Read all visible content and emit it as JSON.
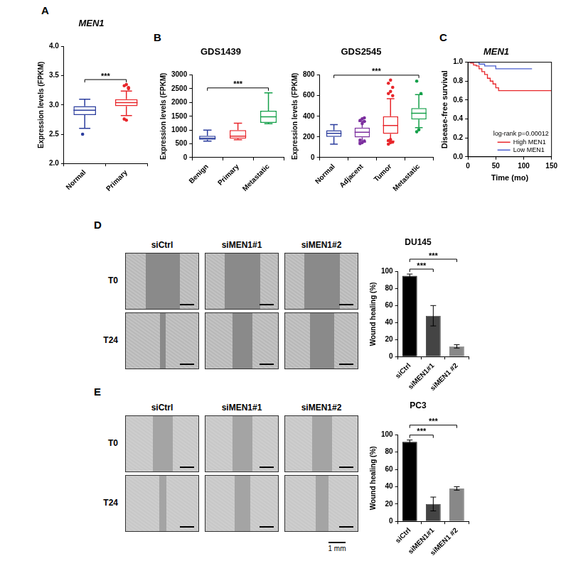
{
  "panel_labels": [
    "A",
    "B",
    "C",
    "D",
    "E"
  ],
  "chart_data": [
    {
      "type": "box",
      "title": "MEN1",
      "y_label": "Expression levels (FPKM)",
      "categories": [
        "Normal",
        "Primary"
      ],
      "colors": [
        "#2c3e9e",
        "#e8262b"
      ],
      "boxes": [
        {
          "min": 2.6,
          "q1": 2.83,
          "median": 2.91,
          "q3": 2.98,
          "max": 3.1,
          "outliers": [
            2.5
          ]
        },
        {
          "min": 2.82,
          "q1": 2.98,
          "median": 3.04,
          "q3": 3.1,
          "max": 3.24,
          "outliers": [
            2.76,
            2.74,
            3.28,
            3.33,
            3.35,
            3.3
          ]
        }
      ],
      "ylim": [
        2,
        4
      ],
      "yticks": [
        {
          "value": 2,
          "label": "2.0"
        },
        2.5,
        {
          "value": 3,
          "label": "3.0"
        },
        3.5,
        {
          "value": 4,
          "label": "4.0"
        }
      ],
      "significance": [
        {
          "from": "Normal",
          "to": "Primary",
          "label": "***"
        }
      ]
    },
    {
      "type": "box",
      "title": "GDS1439",
      "y_label": "Expression levels (FPKM)",
      "categories": [
        "Benign",
        "Primary",
        "Metastatic"
      ],
      "colors": [
        "#2c3e9e",
        "#e8262b",
        "#15a04a"
      ],
      "boxes": [
        {
          "min": 600,
          "q1": 650,
          "median": 700,
          "q3": 790,
          "max": 1000,
          "outliers": []
        },
        {
          "min": 650,
          "q1": 690,
          "median": 780,
          "q3": 1000,
          "max": 1250,
          "outliers": []
        },
        {
          "min": 1230,
          "q1": 1260,
          "median": 1480,
          "q3": 1700,
          "max": 2350,
          "outliers": []
        }
      ],
      "ylim": [
        0,
        3000
      ],
      "yticks": [
        0,
        500,
        1000,
        1500,
        2000,
        2500,
        3000
      ],
      "significance": [
        {
          "from": "Benign",
          "to": "Metastatic",
          "label": "***"
        }
      ]
    },
    {
      "type": "box",
      "title": "GDS2545",
      "y_label": "Expression levels (FPKM)",
      "categories": [
        "Normal",
        "Adjacent",
        "Tumor",
        "Metastatic"
      ],
      "colors": [
        "#2c3e9e",
        "#7b2d9e",
        "#e8262b",
        "#15a04a"
      ],
      "boxes": [
        {
          "min": 130,
          "q1": 200,
          "median": 235,
          "q3": 265,
          "max": 320,
          "outliers": []
        },
        {
          "min": 150,
          "q1": 195,
          "median": 245,
          "q3": 290,
          "max": 350,
          "outliers": [
            135,
            145,
            160,
            170,
            330,
            350,
            360,
            375,
            385
          ]
        },
        {
          "min": 160,
          "q1": 230,
          "median": 310,
          "q3": 400,
          "max": 570,
          "outliers": [
            130,
            145,
            150,
            165,
            175,
            600,
            620,
            640,
            680,
            720,
            750
          ]
        },
        {
          "min": 290,
          "q1": 370,
          "median": 430,
          "q3": 480,
          "max": 610,
          "outliers": [
            250,
            270,
            620,
            740
          ]
        }
      ],
      "ylim": [
        0,
        800
      ],
      "yticks": [
        0,
        200,
        400,
        600,
        800
      ],
      "significance": [
        {
          "from": "Normal",
          "to": "Metastatic",
          "label": "***"
        }
      ]
    },
    {
      "type": "line",
      "title": "MEN1",
      "x_label": "Time (mo)",
      "y_label": "Disease-free survival",
      "series": [
        {
          "name": "High MEN1",
          "color": "#e8262b",
          "x": [
            0,
            5,
            10,
            15,
            20,
            25,
            30,
            35,
            40,
            45,
            50,
            55,
            150
          ],
          "values": [
            1.0,
            0.99,
            0.97,
            0.96,
            0.93,
            0.9,
            0.87,
            0.83,
            0.8,
            0.77,
            0.73,
            0.7,
            0.7
          ]
        },
        {
          "name": "Low MEN1",
          "color": "#4a5fd0",
          "x": [
            0,
            20,
            30,
            50,
            115
          ],
          "values": [
            1.0,
            0.98,
            0.96,
            0.93,
            0.93
          ]
        }
      ],
      "xlim": [
        0,
        150
      ],
      "xticks": [
        0,
        50,
        100,
        150
      ],
      "ylim": [
        0,
        1
      ],
      "yticks": [
        {
          "value": 0,
          "label": "0.0"
        },
        0.2,
        0.4,
        0.6,
        0.8,
        {
          "value": 1,
          "label": "1.0"
        }
      ],
      "legend": "lower right",
      "annotation": "log-rank p=0.00012"
    },
    {
      "type": "bar",
      "title": "DU145",
      "y_label": "Wound healing (%)",
      "categories": [
        "siCtrl",
        "siMEN1#1",
        "siMEN1 #2"
      ],
      "values": [
        95,
        48,
        12
      ],
      "errors": [
        2,
        12,
        2
      ],
      "colors": [
        "#000000",
        "#444444",
        "#888888"
      ],
      "ylim": [
        0,
        100
      ],
      "yticks": [
        0,
        20,
        40,
        60,
        80,
        100
      ],
      "significance": [
        {
          "from": "siCtrl",
          "to": "siMEN1#1",
          "label": "***"
        },
        {
          "from": "siCtrl",
          "to": "siMEN1 #2",
          "label": "***"
        }
      ]
    },
    {
      "type": "bar",
      "title": "PC3",
      "y_label": "Wound healing (%)",
      "categories": [
        "siCtrl",
        "siMEN1#1",
        "siMEN1 #2"
      ],
      "values": [
        92,
        20,
        38
      ],
      "errors": [
        2,
        8,
        2
      ],
      "colors": [
        "#000000",
        "#444444",
        "#888888"
      ],
      "ylim": [
        0,
        100
      ],
      "yticks": [
        0,
        20,
        40,
        60,
        80,
        100
      ],
      "significance": [
        {
          "from": "siCtrl",
          "to": "siMEN1#1",
          "label": "***"
        },
        {
          "from": "siCtrl",
          "to": "siMEN1 #2",
          "label": "***"
        }
      ]
    }
  ],
  "wound_images": [
    {
      "columns": [
        "siCtrl",
        "siMEN1#1",
        "siMEN1#2"
      ],
      "rows": [
        "T0",
        "T24"
      ]
    },
    {
      "columns": [
        "siCtrl",
        "siMEN1#1",
        "siMEN1#2"
      ],
      "rows": [
        "T0",
        "T24"
      ],
      "scale_bar": "1 mm"
    }
  ]
}
